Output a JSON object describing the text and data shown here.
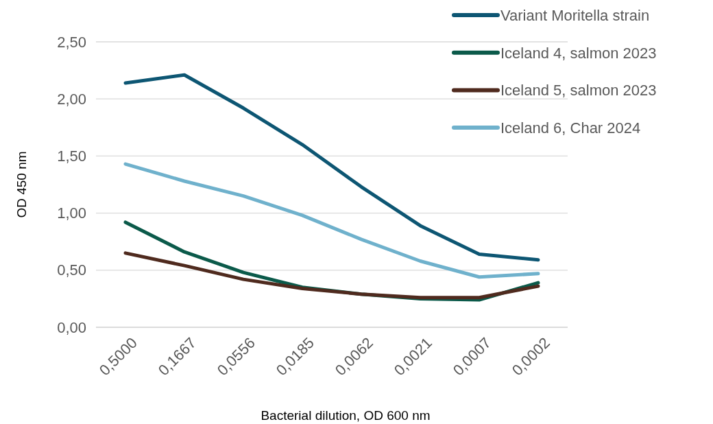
{
  "chart_data": {
    "type": "line",
    "xlabel": "Bacterial dilution, OD 600 nm",
    "ylabel": "OD 450 nm",
    "categories": [
      "0,5000",
      "0,1667",
      "0,0556",
      "0,0185",
      "0,0062",
      "0,0021",
      "0,0007",
      "0,0002"
    ],
    "ylim": [
      0,
      2.5
    ],
    "yticks": [
      {
        "value": 0,
        "label": "0,00"
      },
      {
        "value": 0.5,
        "label": "0,50"
      },
      {
        "value": 1,
        "label": "1,00"
      },
      {
        "value": 1.5,
        "label": "1,50"
      },
      {
        "value": 2,
        "label": "2,00"
      },
      {
        "value": 2.5,
        "label": "2,50"
      }
    ],
    "grid": "y",
    "legend": "top right",
    "marker": "none",
    "line_style": "solid",
    "series": [
      {
        "name": "Variant Moritella strain",
        "color": "#0d5673",
        "values": [
          2.14,
          2.21,
          1.92,
          1.6,
          1.23,
          0.89,
          0.64,
          0.59
        ]
      },
      {
        "name": "Iceland 4, salmon 2023",
        "color": "#0b5a4a",
        "values": [
          0.92,
          0.66,
          0.48,
          0.35,
          0.29,
          0.25,
          0.24,
          0.39
        ]
      },
      {
        "name": "Iceland 5, salmon 2023",
        "color": "#4f2a1e",
        "values": [
          0.65,
          0.54,
          0.42,
          0.34,
          0.29,
          0.26,
          0.26,
          0.36
        ]
      },
      {
        "name": "Iceland 6, Char 2024",
        "color": "#6fb1cc",
        "values": [
          1.43,
          1.28,
          1.15,
          0.98,
          0.77,
          0.58,
          0.44,
          0.47
        ]
      }
    ]
  }
}
